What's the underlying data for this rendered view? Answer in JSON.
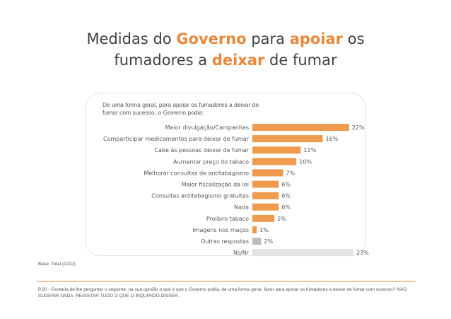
{
  "title": {
    "p1": "Medidas do ",
    "h1": "Governo",
    "p2": " para ",
    "h2": "apoiar",
    "p3": " os",
    "p4": "fumadores a ",
    "h3": "deixar",
    "p5": " de fumar"
  },
  "question": "De uma forma geral, para apoiar os fumadores a deixar de fumar com sucesso, o Governo podia:",
  "base": "Base: Total (1002)",
  "note": "P.20 - Gostaria de lhe perguntar o seguinte: na sua opinião o que é que o Governo podia, de uma forma geral, fazer para apoiar os fumadores a deixar de fumar com sucesso? NÃO SUGERIR NADA. REGISTAR TUDO O QUE O INQUIRIDO DISSER.",
  "colors": {
    "accent": "#e8883a",
    "bar": "#ee9b4e",
    "grey_dark": "#bdbdbd",
    "grey_light": "#e4e4e4"
  },
  "chart_data": {
    "type": "bar",
    "orientation": "horizontal",
    "categories": [
      "Maior divulgação/Campanhas",
      "Comparticipar medicamentos para deixar de fumar",
      "Cabe às pessoas deixar de fumar",
      "Aumentar preço do tabaco",
      "Melhorar consultas de antitabagismo",
      "Maior fiscalização da lei",
      "Consultas antitabagismo gratuitas",
      "Nada",
      "Proibiro tabaco",
      "Imagens nos maços",
      "Outras respostas",
      "Ns/Nr"
    ],
    "values": [
      22,
      16,
      11,
      10,
      7,
      6,
      6,
      6,
      5,
      1,
      2,
      23
    ],
    "value_labels": [
      "22%",
      "16%",
      "11%",
      "10%",
      "7%",
      "6%",
      "6%",
      "6%",
      "5%",
      "1%",
      "2%",
      "23%"
    ],
    "bar_colors": [
      "#ee9b4e",
      "#ee9b4e",
      "#ee9b4e",
      "#ee9b4e",
      "#ee9b4e",
      "#ee9b4e",
      "#ee9b4e",
      "#ee9b4e",
      "#ee9b4e",
      "#ee9b4e",
      "#bdbdbd",
      "#e4e4e4"
    ],
    "unit": "%",
    "xlim": [
      0,
      23
    ],
    "grid": false,
    "legend": "none"
  }
}
